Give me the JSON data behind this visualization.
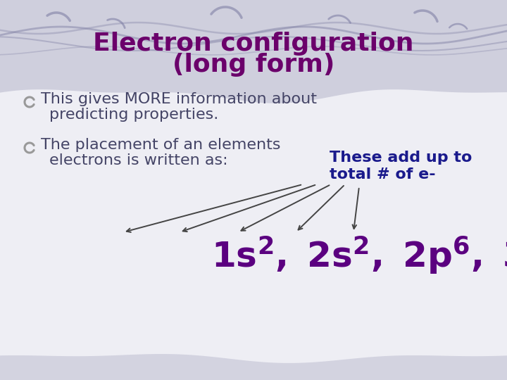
{
  "title_line1": "Electron configuration",
  "title_line2": "(long form)",
  "title_color": "#6B006B",
  "bullet1_line1": "This gives MORE information about",
  "bullet1_line2": "predicting properties.",
  "bullet2_line1": "The placement of an elements",
  "bullet2_line2": "electrons is written as:",
  "bullet_color": "#444466",
  "annotation_line1": "These add up to",
  "annotation_line2": "total # of e-",
  "annotation_color": "#1a1a8c",
  "formula_color": "#5B0080",
  "bg_color": "#EEEEF4",
  "header_bg": "#C4C4D8",
  "arrow_color": "#444444",
  "bottom_band_color": "#C8C8DC",
  "title_fontsize": 26,
  "bullet_fontsize": 16,
  "annotation_fontsize": 16,
  "formula_fontsize": 36
}
